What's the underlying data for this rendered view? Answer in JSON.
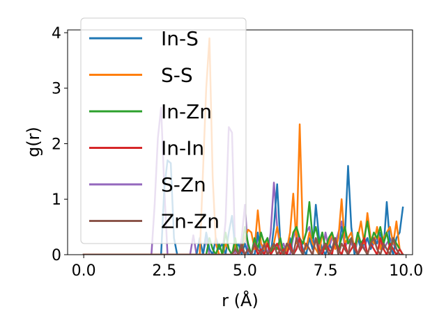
{
  "chart_data": {
    "type": "line",
    "xlabel": "r (Å)",
    "ylabel": "g(r)",
    "xlim": [
      -0.5,
      10.2
    ],
    "ylim": [
      0,
      4.05
    ],
    "xticks": [
      0.0,
      2.5,
      5.0,
      7.5,
      10.0
    ],
    "xtick_labels": [
      "0.0",
      "2.5",
      "5.0",
      "7.5",
      "10.0"
    ],
    "yticks": [
      0,
      1,
      2,
      3,
      4
    ],
    "ytick_labels": [
      "0",
      "1",
      "2",
      "3",
      "4"
    ],
    "legend_position": "upper-left",
    "series": [
      {
        "name": "S-Zn",
        "color": "#9467bd",
        "x": [
          0,
          2.0,
          2.1,
          2.2,
          2.3,
          2.4,
          2.5,
          2.6,
          2.7,
          2.8,
          2.9,
          3.0,
          3.1,
          3.2,
          3.3,
          3.4,
          3.5,
          3.6,
          3.7,
          3.8,
          3.9,
          4.0,
          4.1,
          4.2,
          4.3,
          4.4,
          4.5,
          4.6,
          4.7,
          4.8,
          4.9,
          5.0,
          5.1,
          5.2,
          5.3,
          5.4,
          5.5,
          5.6,
          5.7,
          5.8,
          5.9,
          6.0,
          6.1,
          6.2,
          6.3,
          6.4,
          6.5,
          6.6,
          6.7,
          6.8,
          6.9,
          7.0,
          7.1,
          7.2,
          7.3,
          7.4,
          7.5,
          7.6,
          7.7,
          7.8,
          7.9,
          8.0,
          8.1,
          8.2,
          8.3,
          8.4,
          8.5,
          8.6,
          8.7,
          8.8,
          8.9,
          9.0,
          9.1,
          9.2,
          9.3,
          9.4,
          9.5,
          9.6,
          9.7,
          9.8,
          9.9
        ],
        "y": [
          0,
          0,
          0,
          0.9,
          2.1,
          2.65,
          1.2,
          0,
          0,
          0,
          0,
          0,
          0,
          0,
          0,
          0.35,
          0,
          0,
          0,
          0.3,
          0,
          0,
          0,
          0,
          0,
          0.6,
          2.3,
          2.2,
          0,
          0,
          0.3,
          0.9,
          0,
          0,
          0,
          0.3,
          0.2,
          0,
          0,
          0.4,
          1.3,
          0.5,
          0.1,
          0.2,
          0,
          0,
          0.3,
          0.5,
          0.1,
          0.2,
          0.4,
          0.5,
          0.1,
          0.3,
          0.2,
          0,
          0.4,
          0.1,
          0.3,
          0.2,
          0.4,
          0.6,
          0.1,
          0.3,
          0.2,
          0.1,
          0.3,
          0.2,
          0.1,
          0.3,
          0.1,
          0.2,
          0.3,
          0.2,
          0.1,
          0.2,
          0.3,
          0.2,
          0.1,
          0,
          0
        ]
      },
      {
        "name": "In-S",
        "color": "#1f77b4",
        "x": [
          0,
          2.4,
          2.5,
          2.6,
          2.7,
          2.8,
          2.9,
          3.5,
          3.6,
          3.7,
          3.8,
          3.9,
          4.0,
          4.1,
          4.2,
          4.3,
          4.4,
          4.5,
          4.6,
          4.7,
          4.8,
          4.9,
          5.0,
          5.1,
          5.2,
          5.3,
          5.4,
          5.5,
          5.6,
          5.7,
          5.8,
          5.9,
          6.0,
          6.1,
          6.2,
          6.3,
          6.4,
          6.5,
          6.6,
          6.7,
          6.8,
          6.9,
          7.0,
          7.1,
          7.2,
          7.3,
          7.4,
          7.5,
          7.6,
          7.7,
          7.8,
          7.9,
          8.0,
          8.1,
          8.2,
          8.3,
          8.4,
          8.5,
          8.6,
          8.7,
          8.8,
          8.9,
          9.0,
          9.1,
          9.2,
          9.3,
          9.4,
          9.5,
          9.6,
          9.7,
          9.8,
          9.9
        ],
        "y": [
          0,
          0,
          1.2,
          1.7,
          1.65,
          0.3,
          0,
          0,
          0.3,
          0,
          0.4,
          0.1,
          0,
          0.3,
          0.1,
          0.2,
          0,
          0.4,
          0.7,
          0.1,
          0.2,
          0,
          0.2,
          0,
          0,
          0,
          0.4,
          0,
          0.1,
          0.3,
          0,
          0.5,
          1.27,
          0.2,
          0.1,
          0,
          0.3,
          0,
          0.1,
          0.3,
          0.1,
          0,
          0.3,
          0.1,
          0.9,
          0.3,
          0.1,
          0,
          0.2,
          0.1,
          0.3,
          0,
          0.5,
          0.3,
          1.6,
          0.5,
          0,
          0.3,
          0.1,
          0.2,
          0.3,
          0.1,
          0.3,
          0.2,
          0.4,
          0.1,
          0.95,
          0.2,
          0,
          0.3,
          0.4,
          0.85
        ]
      },
      {
        "name": "S-S",
        "color": "#ff7f0e",
        "x": [
          0,
          3.6,
          3.7,
          3.8,
          3.9,
          4.0,
          4.1,
          4.2,
          4.3,
          4.4,
          4.5,
          4.6,
          4.7,
          4.8,
          4.9,
          5.0,
          5.1,
          5.2,
          5.3,
          5.4,
          5.5,
          5.6,
          5.7,
          5.8,
          5.9,
          6.0,
          6.1,
          6.2,
          6.3,
          6.4,
          6.5,
          6.6,
          6.7,
          6.8,
          6.9,
          7.0,
          7.1,
          7.2,
          7.3,
          7.4,
          7.5,
          7.6,
          7.7,
          7.8,
          7.9,
          8.0,
          8.1,
          8.2,
          8.3,
          8.4,
          8.5,
          8.6,
          8.7,
          8.8,
          8.9,
          9.0,
          9.1,
          9.2,
          9.3,
          9.4,
          9.5,
          9.6,
          9.7,
          9.8,
          9.9
        ],
        "y": [
          0,
          0,
          1.5,
          3.0,
          3.9,
          1.4,
          0.2,
          0,
          0,
          0.2,
          0.1,
          0,
          0.2,
          0,
          0.1,
          0.3,
          0.45,
          0.4,
          0.1,
          0.8,
          0.2,
          0.1,
          0.3,
          0,
          0.2,
          0.5,
          0.2,
          0,
          0.1,
          0.4,
          1.1,
          0.2,
          2.35,
          0.3,
          0.1,
          0.4,
          0.2,
          0.1,
          0,
          0.4,
          0.1,
          0.2,
          0.4,
          0.1,
          0.3,
          1.0,
          0.2,
          0.3,
          0.4,
          0.1,
          0.3,
          0.6,
          0.2,
          0.75,
          0.3,
          0.2,
          0.5,
          0.1,
          0.3,
          0.4,
          0.5,
          0.2,
          0.6,
          0.1,
          0
        ]
      },
      {
        "name": "In-Zn",
        "color": "#2ca02c",
        "x": [
          0,
          3.8,
          3.9,
          4.0,
          4.1,
          4.2,
          4.3,
          4.4,
          4.5,
          4.6,
          4.7,
          4.8,
          4.9,
          5.0,
          5.1,
          5.2,
          5.3,
          5.4,
          5.5,
          5.6,
          5.7,
          5.8,
          5.9,
          6.0,
          6.1,
          6.2,
          6.3,
          6.4,
          6.5,
          6.6,
          6.7,
          6.8,
          6.9,
          7.0,
          7.1,
          7.2,
          7.3,
          7.4,
          7.5,
          7.6,
          7.7,
          7.8,
          7.9,
          8.0,
          8.1,
          8.2,
          8.3,
          8.4,
          8.5,
          8.6,
          8.7,
          8.8,
          8.9,
          9.0,
          9.1,
          9.2,
          9.3,
          9.4,
          9.5,
          9.6,
          9.7,
          9.8,
          9.9
        ],
        "y": [
          0,
          0,
          0.3,
          0.1,
          0,
          0.2,
          0,
          0.4,
          0.1,
          0,
          0.3,
          0,
          0.1,
          0.5,
          0.2,
          0,
          0.3,
          0.1,
          0.4,
          0.2,
          0.3,
          0,
          0.2,
          0.1,
          0.3,
          0,
          0.2,
          0.1,
          0.4,
          0.5,
          0.3,
          0.2,
          0.4,
          0.95,
          0.3,
          0.5,
          0.2,
          0.4,
          0.1,
          0.3,
          0.4,
          0.2,
          0.1,
          0.3,
          0.5,
          0.2,
          0.3,
          0.1,
          0.4,
          0.2,
          0.3,
          0.6,
          0.2,
          0.4,
          0.3,
          0.5,
          0.2,
          0.4,
          0.1,
          0.3,
          0.2,
          0.1,
          0
        ]
      },
      {
        "name": "In-In",
        "color": "#d62728",
        "x": [
          0,
          4.8,
          4.9,
          5.0,
          5.1,
          5.2,
          5.3,
          5.4,
          5.5,
          5.6,
          5.7,
          5.8,
          5.9,
          6.0,
          6.1,
          6.2,
          6.3,
          6.4,
          6.5,
          6.6,
          6.7,
          6.8,
          6.9,
          7.0,
          7.1,
          7.2,
          7.3,
          7.4,
          7.5,
          7.6,
          7.7,
          7.8,
          7.9,
          8.0,
          8.1,
          8.2,
          8.3,
          8.4,
          8.5,
          8.6,
          8.7,
          8.8,
          8.9,
          9.0,
          9.1,
          9.2,
          9.3,
          9.4,
          9.5,
          9.6,
          9.7,
          9.8,
          9.9
        ],
        "y": [
          0,
          0,
          0.1,
          0,
          0.1,
          0,
          0.2,
          0,
          0.1,
          0,
          0.2,
          0,
          0.1,
          0.2,
          0,
          0.1,
          0,
          0.2,
          0,
          0.1,
          0.3,
          0,
          0.2,
          0.1,
          0,
          0.3,
          0.1,
          0,
          0.2,
          0.1,
          0,
          0.3,
          0.1,
          0,
          0.2,
          0,
          0.1,
          0.2,
          0,
          0.1,
          0.3,
          0,
          0.2,
          0.1,
          0,
          0.3,
          0.1,
          0,
          0.2,
          0.1,
          0,
          0.1,
          0
        ]
      },
      {
        "name": "Zn-Zn",
        "color": "#8c564b",
        "x": [
          0,
          4.6,
          4.7,
          4.8,
          4.9,
          5.0,
          5.1,
          5.2,
          5.3,
          5.4,
          5.5,
          5.6,
          5.7,
          5.8,
          5.9,
          6.0,
          6.1,
          6.2,
          6.3,
          6.4,
          6.5,
          6.6,
          6.7,
          6.8,
          6.9,
          7.0,
          7.1,
          7.2,
          7.3,
          7.4,
          7.5,
          7.6,
          7.7,
          7.8,
          7.9,
          8.0,
          8.1,
          8.2,
          8.3,
          8.4,
          8.5,
          8.6,
          8.7,
          8.8,
          8.9,
          9.0,
          9.1,
          9.2,
          9.3,
          9.4,
          9.5,
          9.6,
          9.7,
          9.8,
          9.9
        ],
        "y": [
          0,
          0,
          0.1,
          0,
          0.2,
          0,
          0.1,
          0,
          0.2,
          0.1,
          0,
          0.2,
          0,
          0.1,
          0.2,
          0,
          0.1,
          0,
          0.2,
          0.1,
          0,
          0.3,
          0.1,
          0,
          0.2,
          0.1,
          0,
          0.3,
          0,
          0.1,
          0.2,
          0,
          0.1,
          0.3,
          0,
          0.2,
          0.1,
          0,
          0.3,
          0.1,
          0,
          0.2,
          0.1,
          0,
          0.2,
          0.3,
          0.1,
          0,
          0.2,
          0.1,
          0,
          0.3,
          0.1,
          0,
          0
        ]
      }
    ]
  }
}
